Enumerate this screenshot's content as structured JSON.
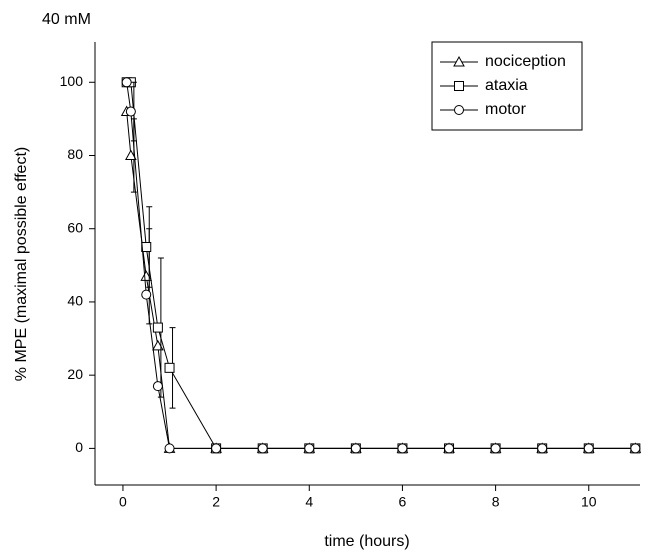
{
  "chart_data": {
    "type": "line",
    "title": "40 mM",
    "x_label": "time (hours)",
    "y_label": "% MPE (maximal possible effect)",
    "x": [
      0.08,
      0.17,
      0.5,
      0.75,
      1,
      2,
      3,
      4,
      5,
      6,
      7,
      8,
      9,
      10,
      11
    ],
    "series": [
      {
        "name": "nociception",
        "color": "#000000",
        "marker": "triangle",
        "values": [
          92,
          80,
          47,
          28,
          0,
          0,
          0,
          0,
          0,
          0,
          0,
          0,
          0,
          0,
          0
        ],
        "errors": [
          null,
          10,
          13,
          null,
          null,
          null,
          null,
          null,
          null,
          null,
          null,
          null,
          null,
          null,
          null
        ]
      },
      {
        "name": "ataxia",
        "color": "#000000",
        "marker": "square",
        "values": [
          100,
          100,
          55,
          33,
          22,
          0,
          0,
          0,
          0,
          0,
          0,
          0,
          0,
          0,
          0
        ],
        "errors": [
          null,
          null,
          11,
          19,
          11,
          null,
          null,
          null,
          null,
          null,
          null,
          null,
          null,
          null,
          null
        ]
      },
      {
        "name": "motor",
        "color": "#000000",
        "marker": "circle",
        "values": [
          100,
          92,
          42,
          17,
          0,
          0,
          0,
          0,
          0,
          0,
          0,
          0,
          0,
          0,
          0
        ],
        "errors": [
          null,
          8,
          null,
          null,
          null,
          null,
          null,
          null,
          null,
          null,
          null,
          null,
          null,
          null,
          null
        ]
      }
    ],
    "xlim": [
      -0.6,
      11.1
    ],
    "xticks": [
      0,
      2,
      4,
      6,
      8,
      10
    ],
    "ylim": [
      -10,
      111
    ],
    "yticks": [
      0,
      20,
      40,
      60,
      80,
      100
    ],
    "legend": "upper right"
  }
}
